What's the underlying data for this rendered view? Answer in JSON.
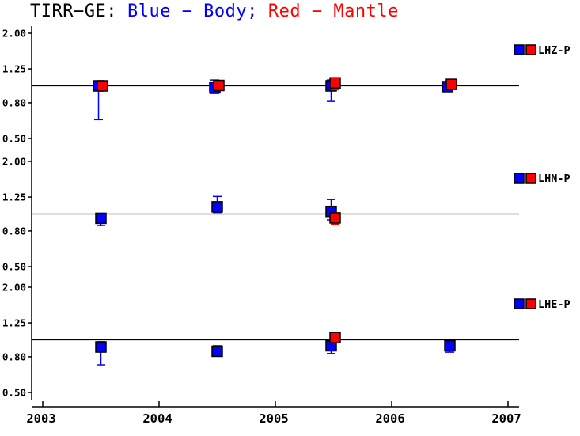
{
  "title": {
    "station": "TIRR−GE:",
    "body": "Blue − Body;",
    "mantle": "Red − Mantle"
  },
  "colors": {
    "body": "#0000ff",
    "mantle": "#ff0000",
    "axis": "#000000",
    "background": "#ffffff"
  },
  "chart_data": {
    "type": "scatter",
    "title": "TIRR−GE: Blue − Body; Red − Mantle",
    "y_scale": "log",
    "x_axis": {
      "tick_labels": [
        "2003",
        "2004",
        "2005",
        "2006",
        "2007"
      ],
      "tick_values": [
        2003,
        2004,
        2005,
        2006,
        2007
      ],
      "range": [
        2002.9,
        2007.1
      ]
    },
    "y_axis": {
      "tick_labels": [
        "2.00",
        "1.25",
        "0.80",
        "0.50"
      ],
      "tick_values": [
        2.0,
        1.25,
        0.8,
        0.5
      ],
      "ylim": [
        0.5,
        2.0
      ],
      "reference_line": 1.0
    },
    "legend_note": "each panel shows blue (Body) and red (Mantle) squares with error bars",
    "panels": [
      {
        "label": "LHZ-P",
        "series": [
          {
            "name": "Body",
            "color_key": "body",
            "points": [
              {
                "x": 2003.5,
                "v": 1.0,
                "lo": 0.64,
                "hi": 1.06
              },
              {
                "x": 2004.5,
                "v": 0.975,
                "lo": 0.905,
                "hi": 1.08
              },
              {
                "x": 2005.5,
                "v": 1.0,
                "lo": 0.815,
                "hi": 1.08
              },
              {
                "x": 2006.5,
                "v": 0.99,
                "lo": 0.93,
                "hi": 1.05
              }
            ]
          },
          {
            "name": "Mantle",
            "color_key": "mantle",
            "points": [
              {
                "x": 2003.5,
                "v": 1.0,
                "lo": 0.94,
                "hi": 1.06
              },
              {
                "x": 2004.5,
                "v": 1.005,
                "lo": 0.97,
                "hi": 1.04
              },
              {
                "x": 2005.5,
                "v": 1.04,
                "lo": 0.95,
                "hi": 1.08
              },
              {
                "x": 2006.5,
                "v": 1.02,
                "lo": 0.96,
                "hi": 1.07
              }
            ]
          }
        ]
      },
      {
        "label": "LHN-P",
        "series": [
          {
            "name": "Body",
            "color_key": "body",
            "points": [
              {
                "x": 2003.5,
                "v": 0.945,
                "lo": 0.86,
                "hi": 1.0
              },
              {
                "x": 2004.5,
                "v": 1.1,
                "lo": 1.02,
                "hi": 1.26
              },
              {
                "x": 2005.5,
                "v": 1.035,
                "lo": 0.925,
                "hi": 1.21
              }
            ]
          },
          {
            "name": "Mantle",
            "color_key": "mantle",
            "points": [
              {
                "x": 2005.5,
                "v": 0.95,
                "lo": 0.875,
                "hi": 0.99
              }
            ]
          }
        ]
      },
      {
        "label": "LHE-P",
        "series": [
          {
            "name": "Body",
            "color_key": "body",
            "points": [
              {
                "x": 2003.5,
                "v": 0.91,
                "lo": 0.72,
                "hi": 0.975
              },
              {
                "x": 2004.5,
                "v": 0.86,
                "lo": 0.81,
                "hi": 0.925
              },
              {
                "x": 2005.5,
                "v": 0.925,
                "lo": 0.835,
                "hi": 0.995
              },
              {
                "x": 2006.5,
                "v": 0.925,
                "lo": 0.85,
                "hi": 0.97
              }
            ]
          },
          {
            "name": "Mantle",
            "color_key": "mantle",
            "points": [
              {
                "x": 2005.5,
                "v": 1.03,
                "lo": 0.985,
                "hi": 1.07
              }
            ]
          }
        ]
      }
    ]
  }
}
